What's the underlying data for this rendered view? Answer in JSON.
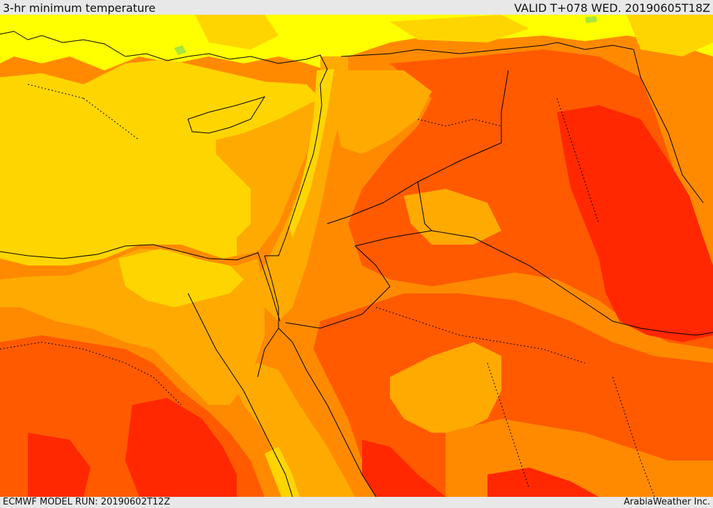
{
  "header": {
    "title": "3-hr minimum temperature",
    "valid": "VALID T+078 WED. 20190605T18Z"
  },
  "footer": {
    "model_run": "ECMWF MODEL RUN: 20190602T12Z",
    "credit": "ArabiaWeather Inc."
  },
  "palette": {
    "yellow": "#ffff00",
    "gold": "#ffd500",
    "amber": "#ffaa00",
    "orange": "#ff8a00",
    "dark_orange": "#ff5a00",
    "red": "#ff2800",
    "light_green": "#a8e63c"
  }
}
